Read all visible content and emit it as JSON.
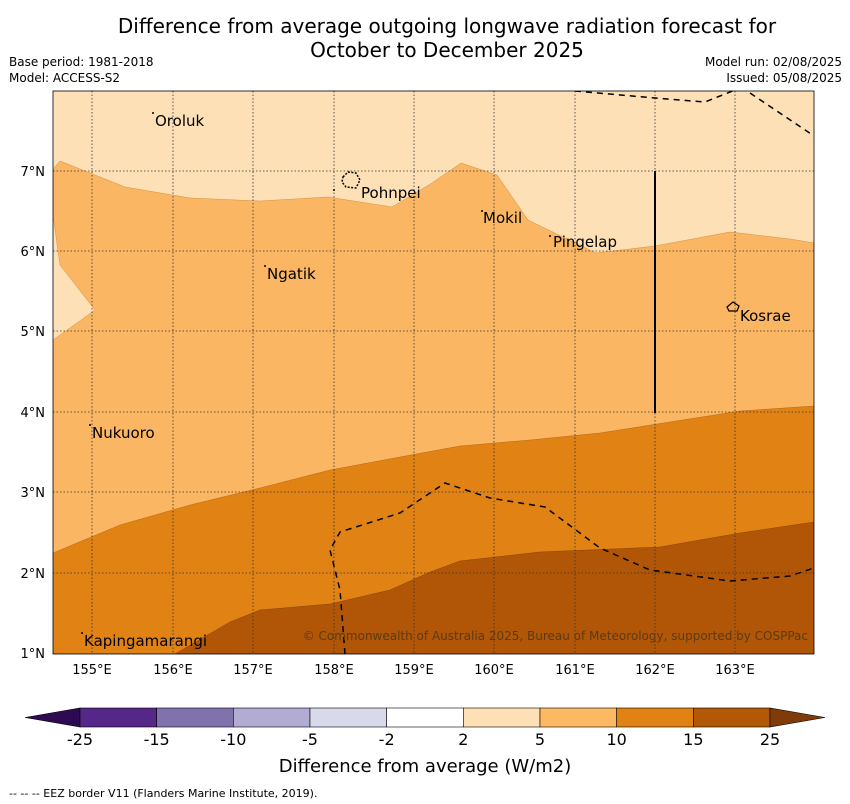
{
  "title_line1": "Difference from average outgoing longwave radiation forecast for",
  "title_line2": "October to December 2025",
  "base_period": "Base period: 1981-2018",
  "model": "Model: ACCESS-S2",
  "model_run": "Model run: 02/08/2025",
  "issued": "Issued: 05/08/2025",
  "copyright": "© Commonwealth of Australia 2025, Bureau of Meteorology, supported by COSPPac",
  "lat_labels": [
    "7°N",
    "6°N",
    "5°N",
    "4°N",
    "3°N",
    "2°N",
    "1°N"
  ],
  "lon_labels": [
    "155°E",
    "156°E",
    "157°E",
    "158°E",
    "159°E",
    "160°E",
    "161°E",
    "162°E",
    "163°E"
  ],
  "places": [
    "Oroluk",
    "Pohnpei",
    "Mokil",
    "Pingelap",
    "Ngatik",
    "Kosrae",
    "Nukuoro",
    "Kapingamarangi"
  ],
  "colorbar": {
    "tick_labels": [
      "-25",
      "-15",
      "-10",
      "-5",
      "-2",
      "2",
      "5",
      "10",
      "15",
      "25"
    ],
    "colors": [
      "#2d0b52",
      "#542788",
      "#8073ac",
      "#b2abd2",
      "#d8daeb",
      "#ffffff",
      "#fee0b6",
      "#fdb863",
      "#e08214",
      "#b35806",
      "#7f3b08"
    ],
    "title": "Difference from average (W/m2)"
  },
  "fill_colors": {
    "c2_5": "#fde0b6",
    "c5_10": "#fbb663",
    "c10_15": "#e08214",
    "c15_25": "#b05606"
  },
  "footer": "--  --  -- EEZ border V11 (Flanders Marine Institute, 2019)."
}
